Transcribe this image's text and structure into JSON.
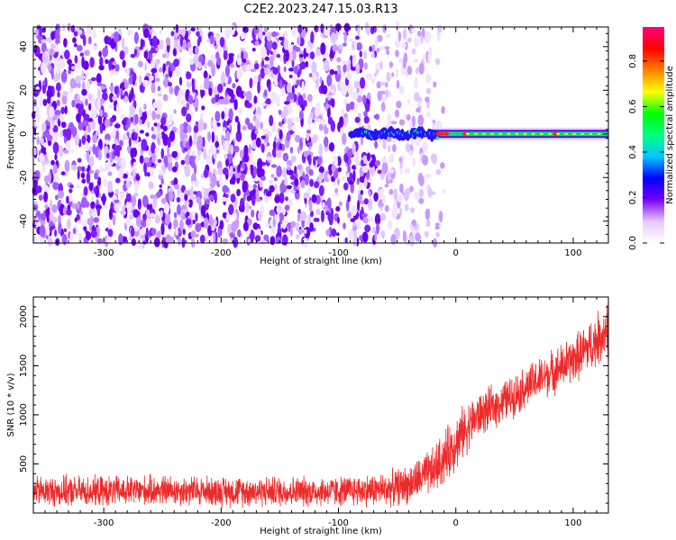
{
  "figure_title": "C2E2.2023.247.15.03.R13",
  "chart_data": [
    {
      "type": "heatmap",
      "title": "C2E2.2023.247.15.03.R13",
      "xlabel": "Height of straight line (km)",
      "ylabel": "Frequency (Hz)",
      "xlim": [
        -360,
        130
      ],
      "ylim": [
        -50,
        49
      ],
      "x_ticks": [
        -300,
        -200,
        -100,
        0,
        100
      ],
      "y_ticks": [
        -40,
        -20,
        0,
        20,
        40
      ],
      "description_series": [
        {
          "name": "broadband noise",
          "x_range": [
            -360,
            -30
          ],
          "freq_range": [
            -50,
            49
          ]
        },
        {
          "name": "signal tone",
          "x_range": [
            -90,
            130
          ],
          "freq_center": 0
        }
      ],
      "colorbar": {
        "label": "Normalized spectral amplitude",
        "range": [
          0,
          0.95
        ],
        "ticks": [
          0.0,
          0.2,
          0.4,
          0.6,
          0.8
        ],
        "colormap": [
          "#ffffff",
          "#e6c8ff",
          "#7a00ff",
          "#0000ff",
          "#00c8ff",
          "#00ff80",
          "#00ff00",
          "#ffff00",
          "#ff8000",
          "#ff0000",
          "#ff0080"
        ]
      }
    },
    {
      "type": "line",
      "xlabel": "Height of straight line (km)",
      "ylabel": "SNR (10 * v/v)",
      "xlim": [
        -360,
        130
      ],
      "ylim": [
        0,
        2200
      ],
      "x_ticks": [
        -300,
        -200,
        -100,
        0,
        100
      ],
      "y_ticks": [
        500,
        1000,
        1500,
        2000
      ],
      "series": [
        {
          "name": "SNR",
          "color": "#ee2a2a",
          "x": [
            -360,
            -300,
            -250,
            -200,
            -150,
            -100,
            -60,
            -40,
            -20,
            -10,
            0,
            10,
            20,
            40,
            60,
            80,
            100,
            120,
            130
          ],
          "y": [
            220,
            220,
            230,
            220,
            220,
            220,
            240,
            290,
            420,
            560,
            720,
            880,
            1000,
            1130,
            1280,
            1420,
            1560,
            1760,
            1880
          ],
          "noise_amplitude": [
            180,
            180,
            180,
            180,
            180,
            180,
            200,
            230,
            280,
            320,
            330,
            300,
            260,
            250,
            250,
            260,
            280,
            320,
            340
          ]
        }
      ]
    }
  ]
}
